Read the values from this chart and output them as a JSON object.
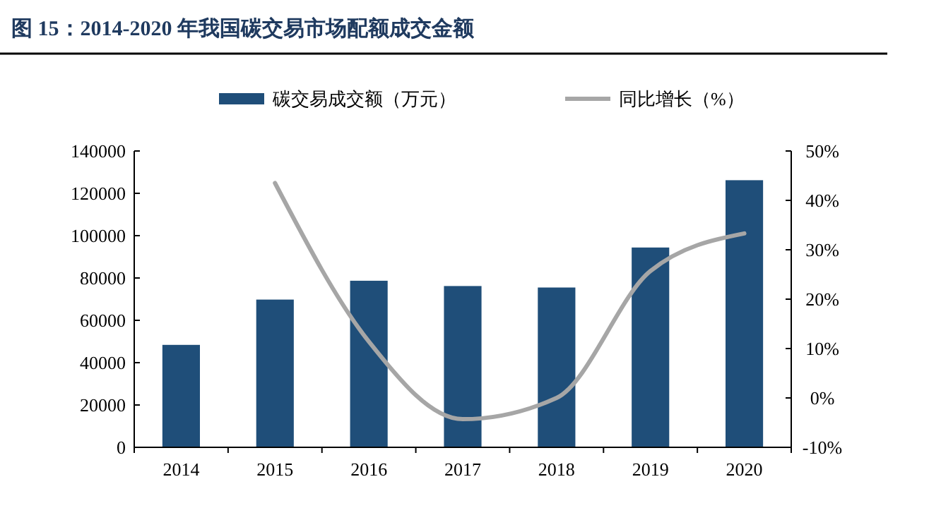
{
  "chart_data": {
    "type": "bar",
    "title": "图 15：2014-2020 年我国碳交易市场配额成交金额",
    "categories": [
      "2014",
      "2015",
      "2016",
      "2017",
      "2018",
      "2019",
      "2020"
    ],
    "series": [
      {
        "name": "碳交易成交额（万元）",
        "color": "#1f4e79",
        "values": [
          48400,
          69800,
          78700,
          76200,
          75500,
          94400,
          126200
        ]
      },
      {
        "name": "同比增长（%）",
        "type": "line",
        "axis": "y2",
        "color": "#a6a6a6",
        "values": [
          null,
          43.5,
          11.4,
          -4.3,
          0,
          25.7,
          33.3
        ]
      }
    ],
    "ylim": [
      0,
      140000
    ],
    "yticks": [
      0,
      20000,
      40000,
      60000,
      80000,
      100000,
      120000,
      140000
    ],
    "y2lim": [
      -10,
      50
    ],
    "y2ticks": [
      {
        "value": -10,
        "label": "-10%"
      },
      {
        "value": 0,
        "label": "0%"
      },
      {
        "value": 10,
        "label": "10%"
      },
      {
        "value": 20,
        "label": "20%"
      },
      {
        "value": 30,
        "label": "30%"
      },
      {
        "value": 40,
        "label": "40%"
      },
      {
        "value": 50,
        "label": "50%"
      }
    ],
    "legend": "top",
    "grid": false,
    "marker": "none",
    "line_style": "solid"
  }
}
